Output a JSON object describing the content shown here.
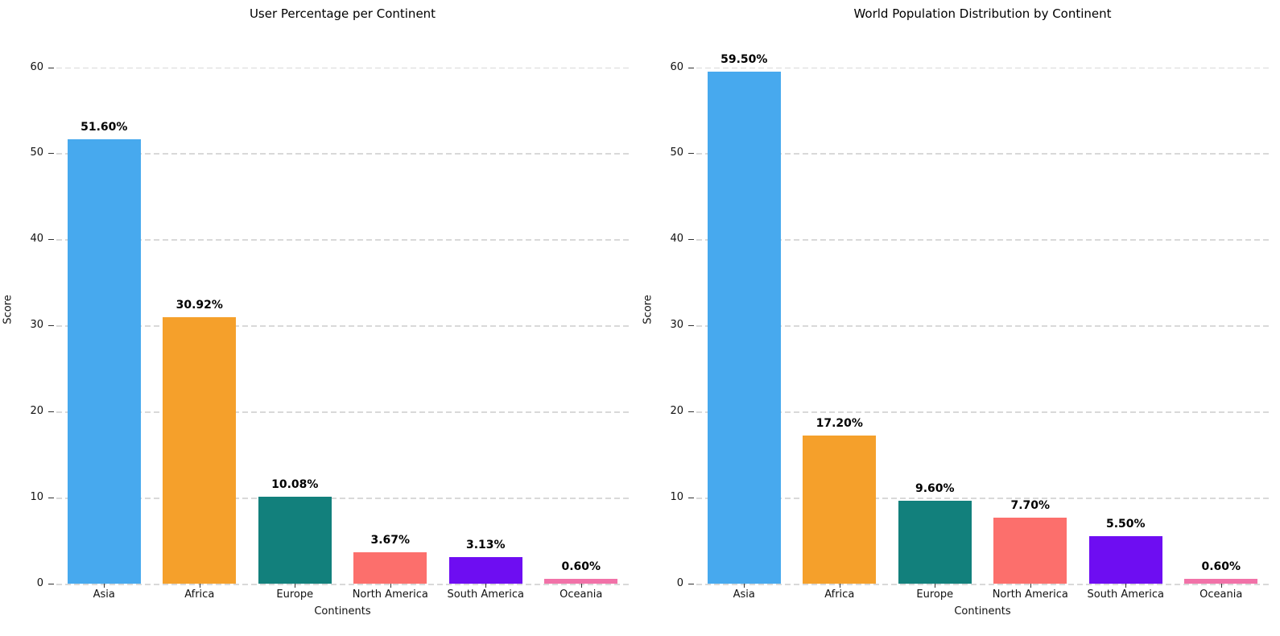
{
  "figure": {
    "background": "#ffffff",
    "grid_color": "#d9d9d9",
    "tick_color": "#333333",
    "text_color": "#111111"
  },
  "chart_data": [
    {
      "type": "bar",
      "title": "User Percentage per Continent",
      "xlabel": "Continents",
      "ylabel": "Score",
      "categories": [
        "Asia",
        "Africa",
        "Europe",
        "North America",
        "South America",
        "Oceania"
      ],
      "values": [
        51.6,
        30.92,
        10.08,
        3.67,
        3.13,
        0.6
      ],
      "value_labels": [
        "51.60%",
        "30.92%",
        "10.08%",
        "3.67%",
        "3.13%",
        "0.60%"
      ],
      "bar_colors": [
        "#47a9ee",
        "#f5a02b",
        "#12807c",
        "#fc6f6c",
        "#6e0df2",
        "#f172a8"
      ],
      "yticks": [
        0,
        10,
        20,
        30,
        40,
        50,
        60
      ],
      "ylim": [
        0,
        63.7
      ],
      "grid": "horizontal-dashed",
      "legend": "none"
    },
    {
      "type": "bar",
      "title": "World Population Distribution by Continent",
      "xlabel": "Continents",
      "ylabel": "Score",
      "categories": [
        "Asia",
        "Africa",
        "Europe",
        "North America",
        "South America",
        "Oceania"
      ],
      "values": [
        59.5,
        17.2,
        9.6,
        7.7,
        5.5,
        0.6
      ],
      "value_labels": [
        "59.50%",
        "17.20%",
        "9.60%",
        "7.70%",
        "5.50%",
        "0.60%"
      ],
      "bar_colors": [
        "#47a9ee",
        "#f5a02b",
        "#12807c",
        "#fc6f6c",
        "#6e0df2",
        "#f172a8"
      ],
      "yticks": [
        0,
        10,
        20,
        30,
        40,
        50,
        60
      ],
      "ylim": [
        0,
        63.7
      ],
      "grid": "horizontal-dashed",
      "legend": "none"
    }
  ]
}
